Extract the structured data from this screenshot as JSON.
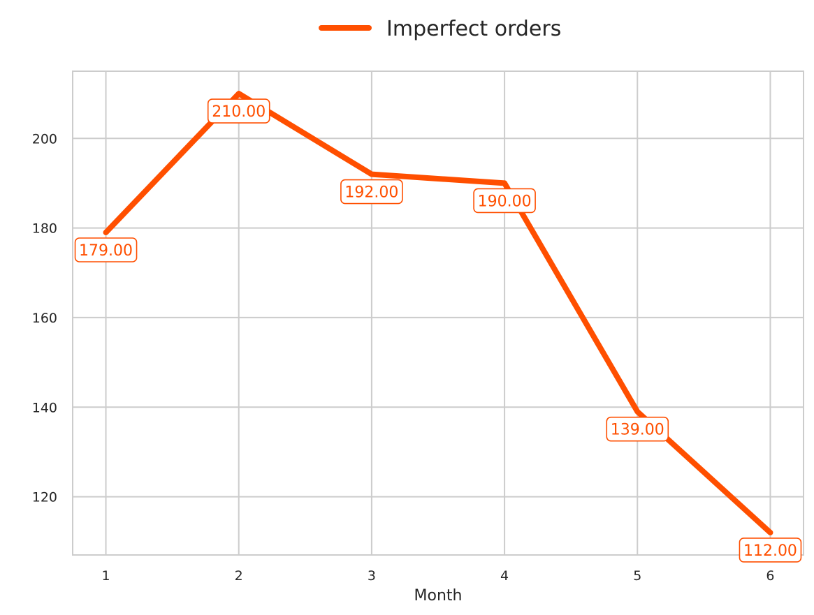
{
  "chart_data": {
    "type": "line",
    "title": "",
    "xlabel": "Month",
    "ylabel": "",
    "x": [
      1,
      2,
      3,
      4,
      5,
      6
    ],
    "x_tick_labels": [
      "1",
      "2",
      "3",
      "4",
      "5",
      "6"
    ],
    "y_ticks": [
      120,
      140,
      160,
      180,
      200
    ],
    "y_tick_labels": [
      "120",
      "140",
      "160",
      "180",
      "200"
    ],
    "ylim": [
      107,
      215
    ],
    "xlim": [
      0.75,
      6.25
    ],
    "grid": true,
    "legend_position": "top-center",
    "series": [
      {
        "name": "Imperfect orders",
        "values": [
          179,
          210,
          192,
          190,
          139,
          112
        ],
        "data_labels": [
          "179.00",
          "210.00",
          "192.00",
          "190.00",
          "139.00",
          "112.00"
        ],
        "label_placement": [
          "below",
          "below",
          "below",
          "below",
          "below",
          "below"
        ],
        "color": "#ff4f00"
      }
    ]
  }
}
